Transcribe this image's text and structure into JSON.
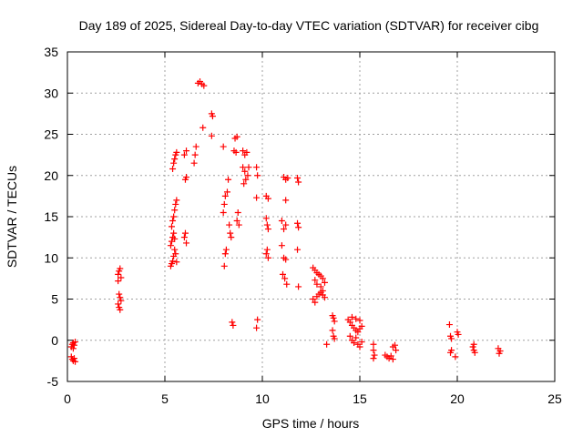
{
  "chart_data": {
    "type": "scatter",
    "title": "Day 189 of 2025, Sidereal Day-to-day VTEC variation (SDTVAR) for receiver cibg",
    "xlabel": "GPS time / hours",
    "ylabel": "SDTVAR / TECUs",
    "xlim": [
      0,
      25
    ],
    "ylim": [
      -5,
      35
    ],
    "xticks": [
      0,
      5,
      10,
      15,
      20,
      25
    ],
    "yticks": [
      -5,
      0,
      5,
      10,
      15,
      20,
      25,
      30,
      35
    ],
    "grid": true,
    "marker": "+",
    "color": "#ff0000",
    "series": [
      {
        "name": "SDTVAR",
        "points": [
          [
            0.2,
            -0.8
          ],
          [
            0.25,
            -0.5
          ],
          [
            0.3,
            -0.3
          ],
          [
            0.35,
            -0.6
          ],
          [
            0.4,
            -0.2
          ],
          [
            0.3,
            -1.0
          ],
          [
            0.2,
            -2.0
          ],
          [
            0.25,
            -2.3
          ],
          [
            0.3,
            -2.5
          ],
          [
            0.35,
            -2.2
          ],
          [
            0.4,
            -2.6
          ],
          [
            2.6,
            8.0
          ],
          [
            2.65,
            8.4
          ],
          [
            2.7,
            8.7
          ],
          [
            2.75,
            7.6
          ],
          [
            2.6,
            7.2
          ],
          [
            2.7,
            5.2
          ],
          [
            2.65,
            5.6
          ],
          [
            2.75,
            4.8
          ],
          [
            2.6,
            4.4
          ],
          [
            2.7,
            3.7
          ],
          [
            2.65,
            4.0
          ],
          [
            5.3,
            9.0
          ],
          [
            5.35,
            9.3
          ],
          [
            5.4,
            9.6
          ],
          [
            5.45,
            10.2
          ],
          [
            5.3,
            11.5
          ],
          [
            5.35,
            12.0
          ],
          [
            5.4,
            12.5
          ],
          [
            5.45,
            13.0
          ],
          [
            5.5,
            12.3
          ],
          [
            5.35,
            13.8
          ],
          [
            5.4,
            14.5
          ],
          [
            5.45,
            15.0
          ],
          [
            5.5,
            15.8
          ],
          [
            5.55,
            16.5
          ],
          [
            5.6,
            17.0
          ],
          [
            5.4,
            20.8
          ],
          [
            5.45,
            21.5
          ],
          [
            5.5,
            22.0
          ],
          [
            5.55,
            22.5
          ],
          [
            5.6,
            22.8
          ],
          [
            5.5,
            11.0
          ],
          [
            5.6,
            9.5
          ],
          [
            5.55,
            10.5
          ],
          [
            6.0,
            12.5
          ],
          [
            6.05,
            13.0
          ],
          [
            6.1,
            11.8
          ],
          [
            6.05,
            19.5
          ],
          [
            6.1,
            19.8
          ],
          [
            6.0,
            22.5
          ],
          [
            6.1,
            23.0
          ],
          [
            6.5,
            21.5
          ],
          [
            6.55,
            22.5
          ],
          [
            6.6,
            23.5
          ],
          [
            6.7,
            31.2
          ],
          [
            6.8,
            31.4
          ],
          [
            6.9,
            31.1
          ],
          [
            7.0,
            30.9
          ],
          [
            6.95,
            25.8
          ],
          [
            7.4,
            27.5
          ],
          [
            7.45,
            27.2
          ],
          [
            7.4,
            24.8
          ],
          [
            8.0,
            23.5
          ],
          [
            8.05,
            9.0
          ],
          [
            8.1,
            10.5
          ],
          [
            8.15,
            11.0
          ],
          [
            8.0,
            15.5
          ],
          [
            8.05,
            16.5
          ],
          [
            8.1,
            17.5
          ],
          [
            8.2,
            18.0
          ],
          [
            8.25,
            19.5
          ],
          [
            8.3,
            14.0
          ],
          [
            8.35,
            13.0
          ],
          [
            8.4,
            12.5
          ],
          [
            8.45,
            2.2
          ],
          [
            8.5,
            1.8
          ],
          [
            8.6,
            24.5
          ],
          [
            8.7,
            24.7
          ],
          [
            8.55,
            23.0
          ],
          [
            8.65,
            22.8
          ],
          [
            8.75,
            15.5
          ],
          [
            8.7,
            14.5
          ],
          [
            8.8,
            14.0
          ],
          [
            9.0,
            23.0
          ],
          [
            9.1,
            22.5
          ],
          [
            9.2,
            22.8
          ],
          [
            9.0,
            21.0
          ],
          [
            9.1,
            20.5
          ],
          [
            9.05,
            19.0
          ],
          [
            9.15,
            19.5
          ],
          [
            9.25,
            20.0
          ],
          [
            9.3,
            21.0
          ],
          [
            9.7,
            21.0
          ],
          [
            9.75,
            20.0
          ],
          [
            9.7,
            17.3
          ],
          [
            9.75,
            2.5
          ],
          [
            9.7,
            1.5
          ],
          [
            10.2,
            17.5
          ],
          [
            10.3,
            17.2
          ],
          [
            10.2,
            14.8
          ],
          [
            10.25,
            14.0
          ],
          [
            10.3,
            13.5
          ],
          [
            10.2,
            10.5
          ],
          [
            10.25,
            11.0
          ],
          [
            10.3,
            10.0
          ],
          [
            11.0,
            14.5
          ],
          [
            11.1,
            13.5
          ],
          [
            11.2,
            14.0
          ],
          [
            11.1,
            19.8
          ],
          [
            11.2,
            19.5
          ],
          [
            11.3,
            19.7
          ],
          [
            11.2,
            17.0
          ],
          [
            11.0,
            11.5
          ],
          [
            11.1,
            10.0
          ],
          [
            11.2,
            9.8
          ],
          [
            11.05,
            8.0
          ],
          [
            11.15,
            7.5
          ],
          [
            11.25,
            6.8
          ],
          [
            11.8,
            19.7
          ],
          [
            11.85,
            19.2
          ],
          [
            11.8,
            14.2
          ],
          [
            11.85,
            13.7
          ],
          [
            11.8,
            11.0
          ],
          [
            11.85,
            6.5
          ],
          [
            12.6,
            8.8
          ],
          [
            12.7,
            8.5
          ],
          [
            12.8,
            8.2
          ],
          [
            12.9,
            8.0
          ],
          [
            13.0,
            7.8
          ],
          [
            13.1,
            7.5
          ],
          [
            13.2,
            7.0
          ],
          [
            12.7,
            7.3
          ],
          [
            12.8,
            6.8
          ],
          [
            13.0,
            6.5
          ],
          [
            13.1,
            6.0
          ],
          [
            12.6,
            5.0
          ],
          [
            12.7,
            4.6
          ],
          [
            12.8,
            5.3
          ],
          [
            12.9,
            5.6
          ],
          [
            13.0,
            5.8
          ],
          [
            13.1,
            5.5
          ],
          [
            13.2,
            5.2
          ],
          [
            13.3,
            -0.5
          ],
          [
            13.6,
            3.0
          ],
          [
            13.65,
            2.7
          ],
          [
            13.7,
            2.3
          ],
          [
            13.6,
            1.2
          ],
          [
            13.65,
            0.5
          ],
          [
            13.7,
            0.2
          ],
          [
            14.4,
            2.5
          ],
          [
            14.5,
            2.2
          ],
          [
            14.6,
            1.8
          ],
          [
            14.7,
            1.5
          ],
          [
            14.8,
            1.2
          ],
          [
            14.9,
            1.0
          ],
          [
            15.0,
            1.4
          ],
          [
            15.1,
            1.7
          ],
          [
            14.5,
            0.5
          ],
          [
            14.6,
            0.0
          ],
          [
            14.7,
            -0.3
          ],
          [
            14.8,
            0.3
          ],
          [
            14.9,
            -0.5
          ],
          [
            15.0,
            -0.8
          ],
          [
            15.1,
            -0.2
          ],
          [
            14.6,
            2.8
          ],
          [
            14.8,
            2.6
          ],
          [
            15.0,
            2.4
          ],
          [
            15.7,
            -0.5
          ],
          [
            15.7,
            -1.2
          ],
          [
            15.75,
            -1.8
          ],
          [
            15.7,
            -2.2
          ],
          [
            16.3,
            -1.8
          ],
          [
            16.4,
            -2.0
          ],
          [
            16.5,
            -2.2
          ],
          [
            16.6,
            -1.9
          ],
          [
            16.7,
            -0.8
          ],
          [
            16.8,
            -0.6
          ],
          [
            16.85,
            -1.2
          ],
          [
            16.7,
            -2.3
          ],
          [
            19.6,
            1.9
          ],
          [
            19.65,
            0.5
          ],
          [
            19.7,
            0.2
          ],
          [
            19.65,
            -1.5
          ],
          [
            19.7,
            -1.2
          ],
          [
            19.9,
            -2.0
          ],
          [
            20.0,
            1.0
          ],
          [
            20.05,
            0.7
          ],
          [
            20.8,
            -0.8
          ],
          [
            20.85,
            -1.2
          ],
          [
            20.9,
            -1.5
          ],
          [
            20.85,
            -0.5
          ],
          [
            22.1,
            -1.0
          ],
          [
            22.2,
            -1.3
          ],
          [
            22.15,
            -1.6
          ]
        ]
      }
    ]
  }
}
